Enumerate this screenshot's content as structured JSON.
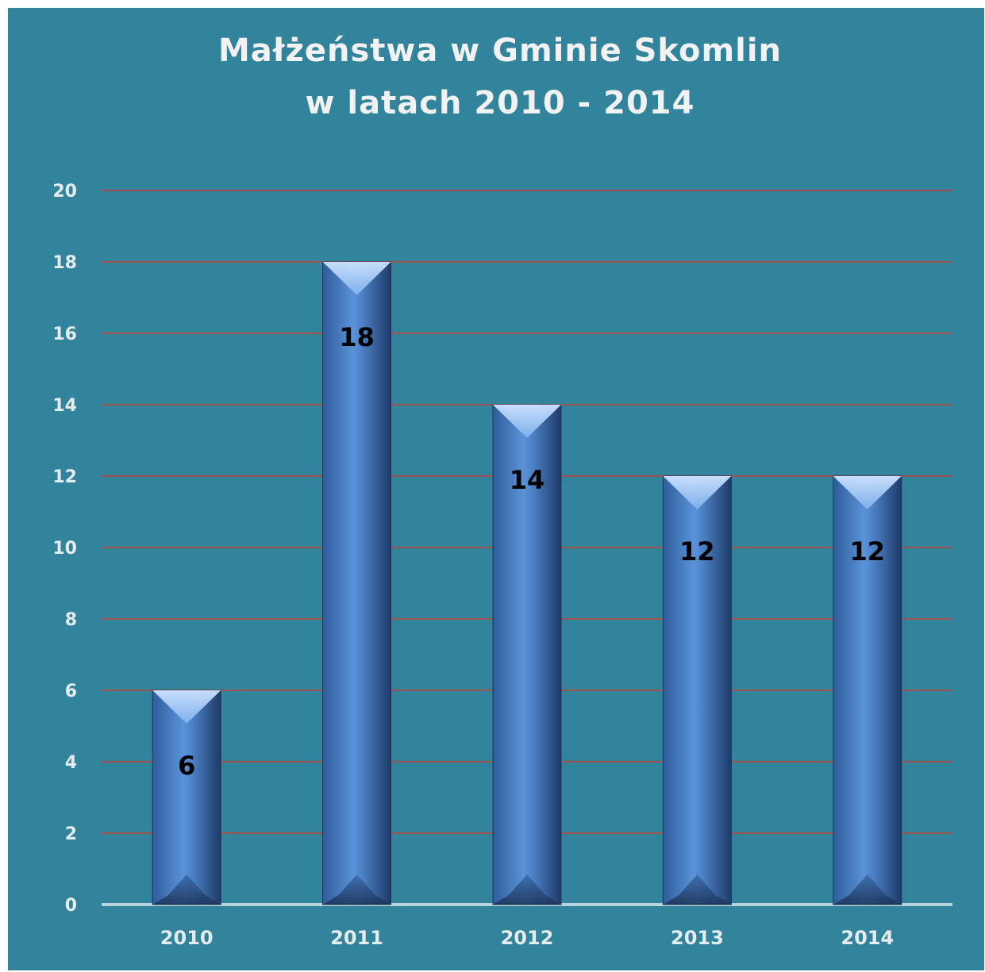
{
  "chart_data": {
    "type": "bar",
    "title_lines": [
      "Małżeństwa w Gminie Skomlin",
      "w latach 2010 - 2014"
    ],
    "categories": [
      "2010",
      "2011",
      "2012",
      "2013",
      "2014"
    ],
    "values": [
      6,
      18,
      14,
      12,
      12
    ],
    "data_labels": [
      "6",
      "18",
      "14",
      "12",
      "12"
    ],
    "ylim": [
      0,
      20
    ],
    "yticks": [
      "0",
      "2",
      "4",
      "6",
      "8",
      "10",
      "12",
      "14",
      "16",
      "18",
      "20"
    ],
    "grid": true,
    "legend": "none",
    "colors": {
      "background": "#31849b",
      "gridline": "#a0524f",
      "baseline": "#b7d4dc",
      "bar_dark": "#2b4f86",
      "bar_light": "#5b93d6"
    }
  }
}
